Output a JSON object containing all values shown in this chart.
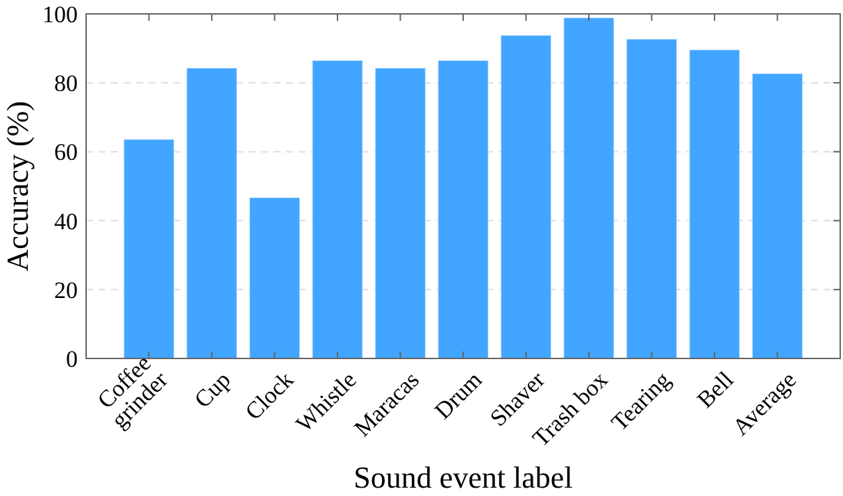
{
  "chart_data": {
    "type": "bar",
    "xlabel": "Sound event label",
    "ylabel": "Accuracy (%)",
    "categories": [
      "Coffee grinder",
      "Cup",
      "Clock",
      "Whistle",
      "Maracas",
      "Drum",
      "Shaver",
      "Trash box",
      "Tearing",
      "Bell",
      "Average"
    ],
    "values": [
      63.6,
      84.3,
      46.7,
      86.5,
      84.3,
      86.5,
      93.8,
      98.9,
      92.7,
      89.6,
      82.7
    ],
    "color": "#42a5ff",
    "ylim": [
      0,
      100
    ],
    "yticks": [
      0,
      20,
      40,
      60,
      80,
      100
    ],
    "grid": "y"
  }
}
